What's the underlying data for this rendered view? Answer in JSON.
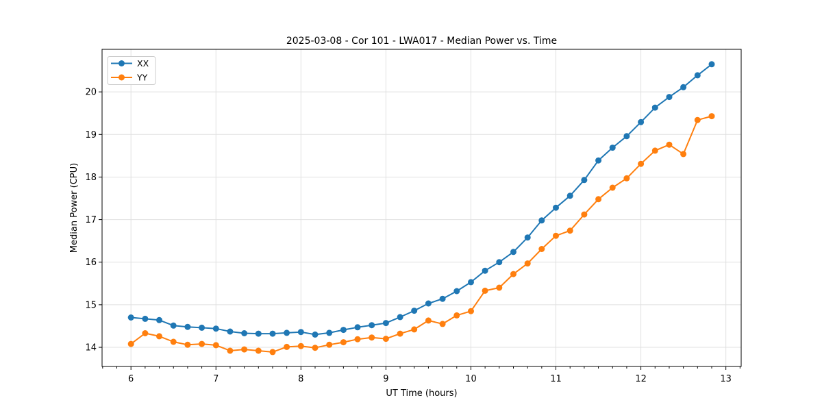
{
  "chart_data": {
    "type": "line",
    "title": "2025-03-08 - Cor 101 - LWA017 - Median Power vs. Time",
    "xlabel": "UT Time (hours)",
    "ylabel": "Median Power (CPU)",
    "xlim": [
      5.66,
      13.18
    ],
    "ylim": [
      13.55,
      21.0
    ],
    "x_ticks": [
      6,
      7,
      8,
      9,
      10,
      11,
      12,
      13
    ],
    "y_ticks": [
      14,
      15,
      16,
      17,
      18,
      19,
      20
    ],
    "x_minor_step": 0.166667,
    "grid": true,
    "grid_color": "#e0e0e0",
    "spine_color": "#000000",
    "legend_position": "upper left",
    "x": [
      6.0,
      6.1667,
      6.3333,
      6.5,
      6.6667,
      6.8333,
      7.0,
      7.1667,
      7.3333,
      7.5,
      7.6667,
      7.8333,
      8.0,
      8.1667,
      8.3333,
      8.5,
      8.6667,
      8.8333,
      9.0,
      9.1667,
      9.3333,
      9.5,
      9.6667,
      9.8333,
      10.0,
      10.1667,
      10.3333,
      10.5,
      10.6667,
      10.8333,
      11.0,
      11.1667,
      11.3333,
      11.5,
      11.6667,
      11.8333,
      12.0,
      12.1667,
      12.3333,
      12.5,
      12.6667,
      12.8333
    ],
    "series": [
      {
        "name": "XX",
        "color": "#1f77b4",
        "values": [
          14.7,
          14.67,
          14.64,
          14.51,
          14.48,
          14.46,
          14.44,
          14.37,
          14.33,
          14.32,
          14.32,
          14.34,
          14.36,
          14.3,
          14.34,
          14.41,
          14.47,
          14.52,
          14.57,
          14.71,
          14.86,
          15.03,
          15.14,
          15.32,
          15.53,
          15.8,
          16.0,
          16.24,
          16.58,
          16.98,
          17.28,
          17.56,
          17.93,
          18.39,
          18.69,
          18.96,
          19.29,
          19.63,
          19.88,
          20.11,
          20.39,
          20.65
        ]
      },
      {
        "name": "YY",
        "color": "#ff7f0e",
        "values": [
          14.08,
          14.33,
          14.26,
          14.13,
          14.06,
          14.08,
          14.05,
          13.92,
          13.95,
          13.92,
          13.89,
          14.01,
          14.03,
          13.99,
          14.06,
          14.12,
          14.19,
          14.23,
          14.2,
          14.32,
          14.42,
          14.63,
          14.55,
          14.75,
          14.85,
          15.33,
          15.4,
          15.72,
          15.97,
          16.31,
          16.62,
          16.74,
          17.12,
          17.48,
          17.75,
          17.97,
          18.31,
          18.62,
          18.76,
          18.54,
          19.34,
          19.43
        ]
      }
    ]
  }
}
